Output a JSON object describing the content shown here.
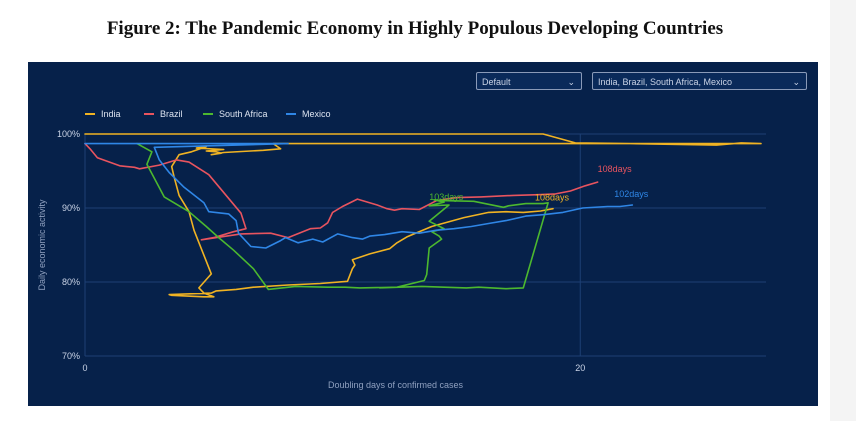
{
  "figure_title": "Figure 2: The Pandemic Economy in Highly Populous Developing Countries",
  "controls": {
    "preset_select": "Default",
    "countries_select": "India, Brazil, South Africa, Mexico"
  },
  "colors": {
    "background": "#06214a",
    "india": "#f0b323",
    "brazil": "#e8545f",
    "south_africa": "#4cb82f",
    "mexico": "#2f86e6",
    "grid": "#1d3f74",
    "axis_text": "#8fa0bf"
  },
  "chart_data": {
    "type": "line",
    "title": "",
    "xlabel": "Doubling days of confirmed cases",
    "ylabel": "Daily economic activity",
    "xlim": [
      0,
      27.5
    ],
    "ylim": [
      70,
      100
    ],
    "x_ticks": [
      "0",
      "20"
    ],
    "y_ticks": [
      "70%",
      "80%",
      "90%",
      "100%"
    ],
    "grid": true,
    "legend_position": "top-left",
    "legend": [
      "India",
      "Brazil",
      "South Africa",
      "Mexico"
    ],
    "annotations": [
      {
        "series": "Brazil",
        "text": "108days"
      },
      {
        "series": "South Africa",
        "text": "103days"
      },
      {
        "series": "India",
        "text": "108days"
      },
      {
        "series": "Mexico",
        "text": "102days"
      }
    ],
    "series": [
      {
        "name": "India",
        "color": "#f0b323",
        "x": [
          0,
          18.5,
          19.8,
          22,
          25.5,
          26.5,
          27.3,
          19.6,
          8.2,
          7.6,
          7.9,
          7.2,
          5.6,
          5.1,
          5.5,
          5.3,
          4.9,
          5.6,
          4.5,
          4.9,
          4.3,
          3.8,
          3.5,
          3.6,
          3.8,
          4.2,
          4.4,
          5.1,
          4.6,
          4.8,
          5.2,
          4.8,
          3.5,
          3.4,
          5.1,
          5.3,
          6.1,
          6.8,
          8.2,
          9.5,
          10.6,
          10.8,
          10.9,
          10.8,
          11.5,
          12.3,
          12.6,
          13.0,
          14.0,
          15.3,
          16.3,
          17.0,
          17.7,
          18.4,
          18.9
        ],
        "y": [
          100,
          100,
          98.8,
          98.7,
          98.5,
          98.8,
          98.7,
          98.7,
          98.7,
          98.7,
          98.0,
          97.8,
          97.5,
          97.2,
          97.4,
          97.6,
          97.7,
          97.9,
          98.1,
          98.3,
          97.6,
          97.2,
          95.6,
          94.2,
          91.7,
          89.5,
          87.0,
          81.1,
          79.2,
          78.5,
          78.0,
          78.0,
          78.2,
          78.3,
          78.5,
          78.8,
          79.0,
          79.3,
          79.6,
          79.8,
          80.1,
          81.8,
          82.3,
          83.0,
          83.8,
          84.5,
          85.3,
          86.1,
          87.5,
          88.7,
          89.4,
          89.5,
          89.4,
          89.6,
          89.9
        ]
      },
      {
        "name": "Brazil",
        "color": "#e8545f",
        "x": [
          0,
          0.2,
          0.5,
          1.4,
          2.0,
          2.2,
          3.0,
          3.7,
          4.2,
          5.0,
          6.3,
          6.5,
          6.0,
          5.2,
          4.7,
          6.3,
          7.5,
          8.2,
          9.1,
          9.5,
          9.8,
          10.0,
          10.4,
          11.0,
          11.8,
          12.2,
          12.5,
          12.8,
          13.5,
          14.2,
          15.0,
          16.0,
          17.3,
          18.3,
          19.0,
          19.6,
          20.2,
          20.7
        ],
        "y": [
          98.7,
          98.0,
          96.8,
          95.7,
          95.5,
          95.3,
          95.8,
          96.5,
          96.2,
          94.5,
          89.3,
          87.2,
          86.8,
          86.0,
          85.7,
          86.5,
          86.6,
          86.0,
          87.2,
          87.3,
          88.0,
          89.4,
          90.2,
          91.2,
          90.4,
          89.9,
          89.7,
          89.9,
          89.8,
          91.0,
          91.4,
          91.5,
          91.7,
          91.8,
          91.9,
          92.3,
          93.0,
          93.5
        ]
      },
      {
        "name": "South Africa",
        "color": "#4cb82f",
        "x": [
          2.1,
          2.7,
          2.5,
          3.2,
          4.2,
          4.9,
          5.4,
          6.0,
          6.8,
          7.4,
          8.5,
          9.8,
          10.5,
          11.1,
          12.6,
          13.7,
          13.8,
          13.9,
          14.4,
          14.3,
          14.0,
          14.5,
          13.9,
          14.7,
          13.9,
          14.5,
          14.1,
          14.4,
          15.7,
          16.9,
          17.1,
          17.8,
          18.5,
          18.7,
          17.7,
          17.0,
          15.9,
          15.4,
          13.6,
          11.9
        ],
        "y": [
          98.7,
          97.6,
          95.9,
          91.5,
          89.5,
          87.5,
          86.0,
          84.3,
          81.8,
          79.0,
          79.4,
          79.3,
          79.3,
          79.2,
          79.3,
          80.2,
          81.0,
          84.6,
          85.8,
          86.2,
          86.8,
          87.2,
          88.2,
          90.4,
          90.3,
          90.8,
          91.1,
          91.0,
          90.9,
          90.1,
          90.3,
          90.6,
          90.6,
          90.7,
          79.2,
          79.1,
          79.3,
          79.2,
          79.4,
          79.2
        ]
      },
      {
        "name": "Mexico",
        "color": "#2f86e6",
        "x": [
          0,
          8.2,
          2.8,
          3.0,
          3.4,
          4.0,
          4.8,
          5.0,
          5.8,
          6.1,
          6.2,
          6.7,
          7.3,
          7.9,
          8.1,
          8.6,
          9.2,
          9.6,
          10.2,
          10.8,
          11.2,
          11.5,
          12.1,
          12.8,
          13.5,
          14.2,
          14.9,
          15.6,
          16.3,
          17.0,
          17.8,
          18.5,
          19.3,
          20.1,
          21.1,
          21.6,
          22.1
        ],
        "y": [
          98.7,
          98.7,
          98.2,
          96.5,
          94.8,
          92.8,
          90.7,
          89.5,
          89.2,
          88.3,
          86.6,
          84.8,
          84.6,
          85.6,
          86.0,
          85.3,
          85.8,
          85.4,
          86.5,
          86.0,
          85.8,
          86.2,
          86.4,
          86.8,
          86.6,
          87.0,
          87.2,
          87.5,
          87.9,
          88.3,
          88.9,
          89.1,
          89.4,
          90.0,
          90.2,
          90.2,
          90.4
        ]
      }
    ]
  }
}
